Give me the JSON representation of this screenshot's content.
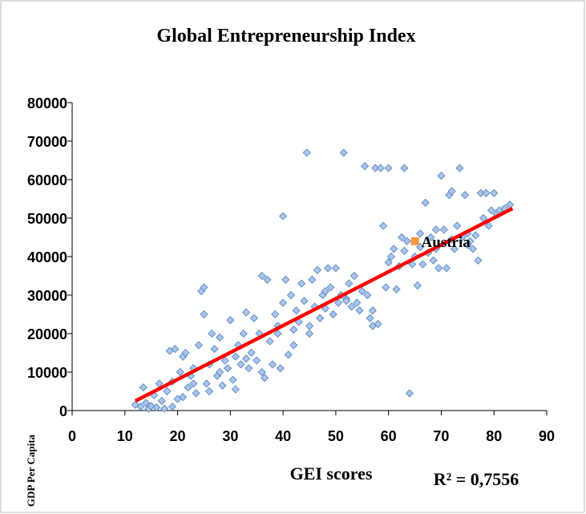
{
  "chart_data": {
    "type": "scatter",
    "title": "Global Entrepreneurship Index",
    "x_label": "GEI scores",
    "y_label": "GDP Per Capita",
    "xlim": [
      0,
      90
    ],
    "xticks": [
      0,
      10,
      20,
      30,
      40,
      50,
      60,
      70,
      80,
      90
    ],
    "ylim": [
      0,
      80000
    ],
    "yticks": [
      0,
      10000,
      20000,
      30000,
      40000,
      50000,
      60000,
      70000,
      80000
    ],
    "grid": false,
    "series": [
      {
        "color": "#a9c4eb",
        "x": [
          12,
          13,
          13.5,
          14,
          14.5,
          15,
          15.5,
          16,
          16.5,
          17,
          17.5,
          18,
          18.5,
          19,
          19.5,
          20,
          20.5,
          21,
          21.5,
          22,
          22.5,
          23,
          23.5,
          24,
          24.5,
          25,
          25,
          25.5,
          26,
          26.5,
          27,
          27.5,
          28,
          28.5,
          29,
          29.5,
          30,
          30.5,
          31,
          31.5,
          32,
          32.5,
          33,
          33.5,
          34,
          34.5,
          35,
          35.5,
          36,
          36.5,
          37,
          37.5,
          38,
          38.5,
          39,
          39.5,
          40,
          40,
          40.5,
          41,
          41.5,
          42,
          42.5,
          43,
          43.5,
          44,
          44.5,
          45,
          45.5,
          46,
          46.5,
          47,
          47.5,
          48,
          48.5,
          49,
          49.5,
          50,
          50.5,
          51,
          51.5,
          52,
          52.5,
          53,
          53.5,
          54,
          54.5,
          55,
          55.5,
          56,
          56.5,
          57,
          57.5,
          58,
          58.5,
          59,
          59.5,
          60,
          60.5,
          61,
          61.5,
          62,
          62.5,
          63,
          63.5,
          64,
          64.5,
          65,
          65.5,
          66,
          66.5,
          67,
          67.5,
          68,
          68.5,
          69,
          69.5,
          70,
          70.5,
          71,
          71.5,
          72,
          72.5,
          73,
          73.5,
          74,
          74.5,
          75,
          75.5,
          76,
          76.5,
          77,
          77.5,
          78,
          78.5,
          79,
          79.5,
          80,
          80.5,
          81,
          82,
          83,
          19,
          21,
          23,
          26,
          28,
          31,
          33,
          36,
          39,
          42,
          45,
          48,
          52,
          57,
          60,
          63,
          66,
          69,
          72,
          75
        ],
        "values": [
          1500,
          1000,
          6000,
          2000,
          500,
          1200,
          4000,
          800,
          7000,
          2500,
          500,
          5000,
          15500,
          7500,
          16000,
          3000,
          10000,
          14000,
          15000,
          6000,
          9000,
          11000,
          4500,
          17000,
          31000,
          32000,
          25000,
          7000,
          12000,
          20000,
          16000,
          9000,
          19000,
          6500,
          13000,
          11000,
          23500,
          8000,
          14000,
          17000,
          12000,
          20000,
          25500,
          11000,
          15000,
          24000,
          13000,
          20000,
          35000,
          8500,
          34000,
          18000,
          12000,
          25000,
          22000,
          11000,
          50500,
          28000,
          34000,
          14500,
          30000,
          21000,
          26000,
          23000,
          33000,
          28500,
          67000,
          22000,
          34000,
          27000,
          36500,
          24000,
          30000,
          26500,
          37000,
          32000,
          25000,
          37000,
          28000,
          30000,
          67000,
          29000,
          33000,
          27000,
          35000,
          28000,
          26000,
          31000,
          63500,
          30000,
          24000,
          22000,
          63000,
          22500,
          63000,
          48000,
          32000,
          63000,
          40000,
          42000,
          31500,
          37500,
          45000,
          63000,
          44000,
          4500,
          38000,
          40000,
          32500,
          46000,
          38000,
          54000,
          41000,
          45000,
          39000,
          42000,
          37000,
          61000,
          47000,
          37000,
          56000,
          57000,
          42000,
          48000,
          63000,
          45000,
          56000,
          46000,
          44000,
          42000,
          45500,
          39000,
          56500,
          50000,
          56500,
          48000,
          52000,
          56500,
          51000,
          52000,
          52500,
          53500,
          1000,
          3500,
          7000,
          5000,
          10000,
          5500,
          13500,
          10000,
          20000,
          17000,
          20000,
          31000,
          28500,
          26000,
          38500,
          41500,
          42500,
          47000,
          44500,
          43000
        ]
      },
      {
        "color": "#f79646",
        "x": [
          65
        ],
        "values": [
          44000
        ]
      }
    ],
    "trendline": {
      "color": "#ff0000",
      "x": [
        12,
        83.5
      ],
      "values": [
        2500,
        52500
      ]
    },
    "annotations": [
      {
        "text": "Austria",
        "x": 65,
        "y": 44000
      },
      {
        "text": "R² = 0,7556"
      }
    ]
  }
}
